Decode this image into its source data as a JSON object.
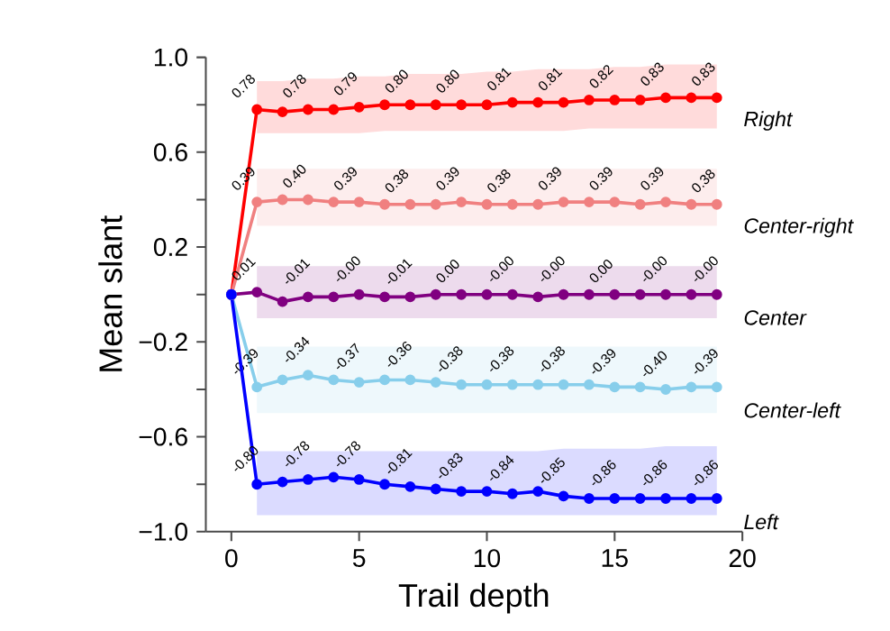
{
  "chart_data": {
    "type": "line",
    "xlabel": "Trail depth",
    "ylabel": "Mean slant",
    "x": [
      0,
      1,
      2,
      3,
      4,
      5,
      6,
      7,
      8,
      9,
      10,
      11,
      12,
      13,
      14,
      15,
      16,
      17,
      18,
      19
    ],
    "xlim": [
      -1,
      20
    ],
    "xticks": [
      0,
      5,
      10,
      15,
      20
    ],
    "ylim": [
      -1,
      1
    ],
    "yticks": [
      {
        "value": -1,
        "label": "−1.0"
      },
      {
        "value": -0.8,
        "label": null
      },
      {
        "value": -0.6,
        "label": "−0.6"
      },
      {
        "value": -0.4,
        "label": null
      },
      {
        "value": -0.2,
        "label": "−0.2"
      },
      {
        "value": 0,
        "label": null
      },
      {
        "value": 0.2,
        "label": "0.2"
      },
      {
        "value": 0.4,
        "label": null
      },
      {
        "value": 0.6,
        "label": "0.6"
      },
      {
        "value": 0.8,
        "label": null
      },
      {
        "value": 1,
        "label": "1.0"
      }
    ],
    "grid": false,
    "legend": false,
    "marker": "circle",
    "line_style": "solid",
    "series": [
      {
        "name": "Right",
        "color": "#ff0000",
        "values": [
          0,
          0.78,
          0.77,
          0.78,
          0.78,
          0.79,
          0.8,
          0.8,
          0.8,
          0.8,
          0.8,
          0.81,
          0.81,
          0.81,
          0.82,
          0.82,
          0.82,
          0.83,
          0.83,
          0.83
        ],
        "lower": [
          null,
          0.68,
          0.68,
          0.68,
          0.68,
          0.68,
          0.69,
          0.69,
          0.69,
          0.69,
          0.69,
          0.69,
          0.69,
          0.69,
          0.7,
          0.7,
          0.7,
          0.7,
          0.7,
          0.7
        ],
        "upper": [
          null,
          0.9,
          0.9,
          0.91,
          0.91,
          0.92,
          0.92,
          0.93,
          0.93,
          0.93,
          0.94,
          0.94,
          0.95,
          0.95,
          0.95,
          0.96,
          0.96,
          0.97,
          0.97,
          0.97
        ],
        "value_labels": [
          null,
          "0.78",
          null,
          "0.78",
          null,
          "0.79",
          null,
          "0.80",
          null,
          "0.80",
          null,
          "0.81",
          null,
          "0.81",
          null,
          "0.82",
          null,
          "0.83",
          null,
          "0.83"
        ]
      },
      {
        "name": "Center-right",
        "color": "#f08080",
        "values": [
          0,
          0.39,
          0.4,
          0.4,
          0.39,
          0.39,
          0.38,
          0.38,
          0.38,
          0.39,
          0.38,
          0.38,
          0.38,
          0.39,
          0.39,
          0.39,
          0.38,
          0.39,
          0.38,
          0.38
        ],
        "lower": [
          null,
          0.29,
          0.29,
          0.29,
          0.29,
          0.29,
          0.29,
          0.29,
          0.29,
          0.29,
          0.29,
          0.29,
          0.29,
          0.29,
          0.29,
          0.29,
          0.29,
          0.29,
          0.29,
          0.29
        ],
        "upper": [
          null,
          0.53,
          0.53,
          0.53,
          0.53,
          0.53,
          0.53,
          0.53,
          0.53,
          0.53,
          0.53,
          0.53,
          0.53,
          0.53,
          0.53,
          0.53,
          0.53,
          0.53,
          0.53,
          0.53
        ],
        "value_labels": [
          null,
          "0.39",
          null,
          "0.40",
          null,
          "0.39",
          null,
          "0.38",
          null,
          "0.39",
          null,
          "0.38",
          null,
          "0.39",
          null,
          "0.39",
          null,
          "0.39",
          null,
          "0.38"
        ]
      },
      {
        "name": "Center",
        "color": "#800080",
        "values": [
          0,
          0.01,
          -0.03,
          -0.01,
          -0.01,
          0.0,
          -0.01,
          -0.01,
          0.0,
          0.0,
          0.0,
          0.0,
          -0.01,
          0.0,
          0.0,
          0.0,
          0.0,
          0.0,
          0.0,
          0.0
        ],
        "lower": [
          null,
          -0.1,
          -0.1,
          -0.1,
          -0.1,
          -0.1,
          -0.1,
          -0.1,
          -0.1,
          -0.1,
          -0.1,
          -0.1,
          -0.1,
          -0.1,
          -0.1,
          -0.1,
          -0.1,
          -0.1,
          -0.1,
          -0.1
        ],
        "upper": [
          null,
          0.12,
          0.12,
          0.12,
          0.12,
          0.12,
          0.12,
          0.12,
          0.12,
          0.12,
          0.12,
          0.12,
          0.12,
          0.12,
          0.12,
          0.12,
          0.12,
          0.12,
          0.12,
          0.12
        ],
        "value_labels": [
          null,
          "0.01",
          null,
          "-0.01",
          null,
          "-0.00",
          null,
          "-0.01",
          null,
          "0.00",
          null,
          "-0.00",
          null,
          "-0.00",
          null,
          "0.00",
          null,
          "-0.00",
          null,
          "-0.00"
        ]
      },
      {
        "name": "Center-left",
        "color": "#87ceeb",
        "values": [
          0,
          -0.39,
          -0.36,
          -0.34,
          -0.36,
          -0.37,
          -0.36,
          -0.36,
          -0.37,
          -0.38,
          -0.38,
          -0.38,
          -0.38,
          -0.38,
          -0.38,
          -0.39,
          -0.39,
          -0.4,
          -0.39,
          -0.39
        ],
        "lower": [
          null,
          -0.5,
          -0.5,
          -0.5,
          -0.5,
          -0.5,
          -0.5,
          -0.5,
          -0.5,
          -0.5,
          -0.5,
          -0.5,
          -0.5,
          -0.5,
          -0.5,
          -0.5,
          -0.5,
          -0.5,
          -0.5,
          -0.5
        ],
        "upper": [
          null,
          -0.22,
          -0.22,
          -0.22,
          -0.22,
          -0.22,
          -0.22,
          -0.22,
          -0.22,
          -0.22,
          -0.22,
          -0.22,
          -0.22,
          -0.22,
          -0.22,
          -0.22,
          -0.22,
          -0.22,
          -0.22,
          -0.22
        ],
        "value_labels": [
          null,
          "-0.39",
          null,
          "-0.34",
          null,
          "-0.37",
          null,
          "-0.36",
          null,
          "-0.38",
          null,
          "-0.38",
          null,
          "-0.38",
          null,
          "-0.39",
          null,
          "-0.40",
          null,
          "-0.39"
        ]
      },
      {
        "name": "Left",
        "color": "#0000ff",
        "values": [
          0,
          -0.8,
          -0.79,
          -0.78,
          -0.77,
          -0.78,
          -0.8,
          -0.81,
          -0.82,
          -0.83,
          -0.83,
          -0.84,
          -0.83,
          -0.85,
          -0.86,
          -0.86,
          -0.86,
          -0.86,
          -0.86,
          -0.86
        ],
        "lower": [
          null,
          -0.93,
          -0.93,
          -0.93,
          -0.93,
          -0.93,
          -0.93,
          -0.93,
          -0.93,
          -0.93,
          -0.93,
          -0.93,
          -0.93,
          -0.93,
          -0.93,
          -0.93,
          -0.93,
          -0.93,
          -0.93,
          -0.93
        ],
        "upper": [
          null,
          -0.66,
          -0.66,
          -0.66,
          -0.66,
          -0.66,
          -0.66,
          -0.66,
          -0.66,
          -0.66,
          -0.66,
          -0.66,
          -0.66,
          -0.65,
          -0.65,
          -0.65,
          -0.65,
          -0.64,
          -0.64,
          -0.64
        ],
        "value_labels": [
          null,
          "-0.80",
          null,
          "-0.78",
          null,
          "-0.78",
          null,
          "-0.81",
          null,
          "-0.83",
          null,
          "-0.84",
          null,
          "-0.85",
          null,
          "-0.86",
          null,
          "-0.86",
          null,
          "-0.86"
        ]
      }
    ]
  }
}
